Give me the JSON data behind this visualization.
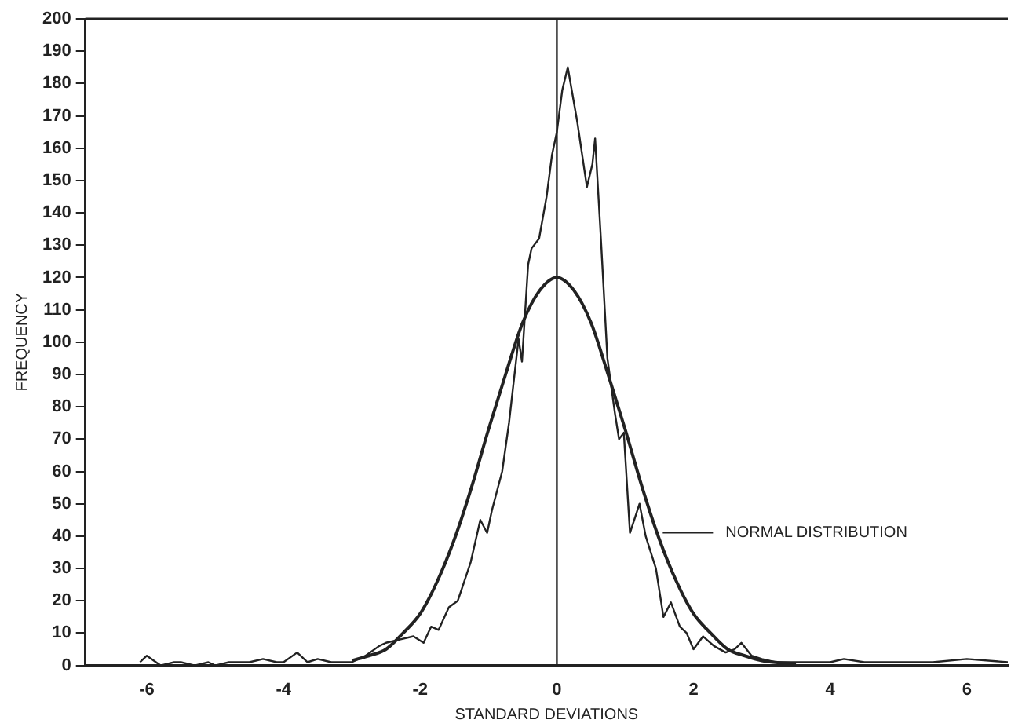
{
  "chart_data": {
    "type": "line",
    "xlabel": "STANDARD DEVIATIONS",
    "ylabel": "FREQUENCY",
    "xlim": [
      -6.9,
      6.6
    ],
    "ylim": [
      0,
      200
    ],
    "xticks": [
      -6,
      -4,
      -2,
      0,
      2,
      4,
      6
    ],
    "yticks": [
      0,
      10,
      20,
      30,
      40,
      50,
      60,
      70,
      80,
      90,
      100,
      110,
      120,
      130,
      140,
      150,
      160,
      170,
      180,
      190,
      200
    ],
    "grid": false,
    "legend": "right",
    "marker": "none",
    "line_style": "solid",
    "ref_lines": [
      {
        "axis": "x",
        "value": 0,
        "color": "#222222"
      }
    ],
    "series": [
      {
        "color": "#222222",
        "x": [
          -6.1,
          -6,
          -5.8,
          -5.6,
          -5.5,
          -5.3,
          -5.1,
          -5,
          -4.8,
          -4.5,
          -4.3,
          -4.1,
          -4,
          -3.8,
          -3.65,
          -3.5,
          -3.3,
          -3.1,
          -3,
          -2.8,
          -2.6,
          -2.5,
          -2.3,
          -2.1,
          -1.95,
          -1.84,
          -1.73,
          -1.58,
          -1.45,
          -1.37,
          -1.26,
          -1.12,
          -1.02,
          -0.95,
          -0.8,
          -0.7,
          -0.56,
          -0.51,
          -0.42,
          -0.37,
          -0.26,
          -0.15,
          -0.07,
          0,
          0.08,
          0.16,
          0.3,
          0.44,
          0.52,
          0.56,
          0.65,
          0.74,
          0.85,
          0.91,
          0.98,
          1.07,
          1.21,
          1.3,
          1.45,
          1.56,
          1.67,
          1.8,
          1.9,
          2,
          2.14,
          2.3,
          2.47,
          2.6,
          2.7,
          2.85,
          3,
          3.2,
          3.5,
          4,
          4.2,
          4.5,
          5,
          5.5,
          6,
          6.6
        ],
        "values": [
          1,
          3,
          0,
          1,
          1,
          0,
          1,
          0,
          1,
          1,
          2,
          1,
          1,
          4,
          1,
          2,
          1,
          1,
          1,
          3,
          6,
          7,
          8,
          9,
          7,
          12,
          11,
          18,
          20,
          25,
          32,
          45,
          41,
          48,
          60,
          75,
          101,
          94,
          124,
          129,
          132,
          145,
          158,
          165,
          178,
          185,
          168,
          148,
          155,
          163,
          130,
          95,
          78,
          70,
          72,
          41,
          50,
          40,
          30,
          15,
          19.5,
          12,
          10,
          5,
          9,
          6,
          4,
          5,
          7,
          3,
          2,
          1,
          1,
          1,
          2,
          1,
          1,
          1,
          2,
          1
        ]
      },
      {
        "name": "NORMAL DISTRIBUTION",
        "color": "#222222",
        "x": [
          -3,
          -2.75,
          -2.5,
          -2.25,
          -2,
          -1.75,
          -1.5,
          -1.25,
          -1,
          -0.75,
          -0.5,
          -0.25,
          0,
          0.25,
          0.5,
          0.75,
          1,
          1.25,
          1.5,
          1.75,
          2,
          2.25,
          2.5,
          2.75,
          3,
          3.5
        ],
        "values": [
          1.5,
          3,
          5,
          10,
          16,
          26,
          39,
          55,
          73,
          90,
          106,
          116,
          120,
          116,
          106,
          90,
          73,
          55,
          39,
          26,
          16,
          10,
          5,
          3,
          1.5,
          0.5
        ]
      }
    ]
  }
}
